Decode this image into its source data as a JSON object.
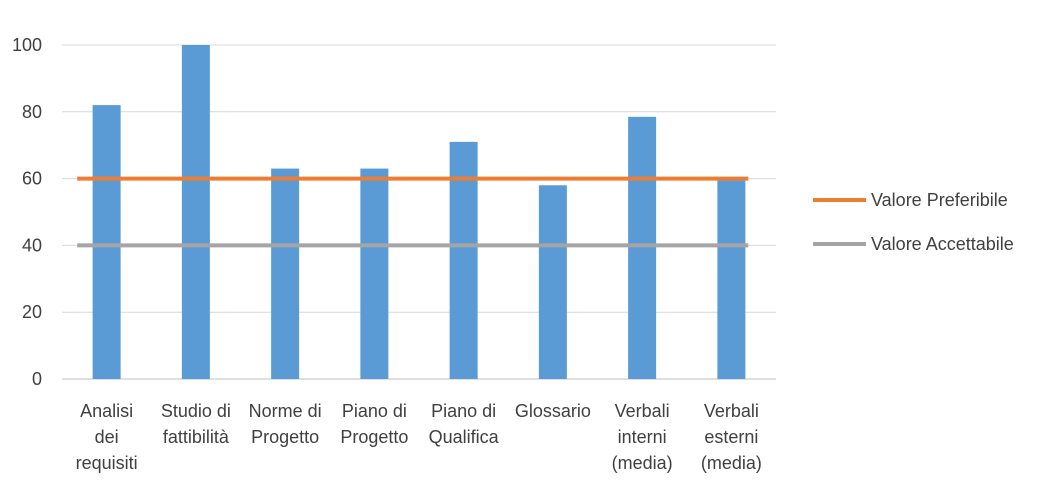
{
  "chart_data": {
    "type": "bar",
    "title": "",
    "xlabel": "",
    "ylabel": "",
    "ylim": [
      0,
      100
    ],
    "yticks": [
      0,
      20,
      40,
      60,
      80,
      100
    ],
    "grid": true,
    "legend_position": "right",
    "categories": [
      [
        "Analisi",
        "dei",
        "requisiti"
      ],
      [
        "Studio di",
        "fattibilità"
      ],
      [
        "Norme di",
        "Progetto"
      ],
      [
        "Piano di",
        "Progetto"
      ],
      [
        "Piano di",
        "Qualifica"
      ],
      [
        "Glossario"
      ],
      [
        "Verbali",
        "interni",
        "(media)"
      ],
      [
        "Verbali",
        "esterni",
        "(media)"
      ]
    ],
    "series": [
      {
        "kind": "bar",
        "values": [
          82,
          100,
          63,
          63,
          71,
          58,
          78.5,
          60.5
        ],
        "color": "#5b9bd5"
      },
      {
        "name": "Valore Preferibile",
        "kind": "line",
        "values": [
          60,
          60,
          60,
          60,
          60,
          60,
          60,
          60
        ],
        "color": "#ed7d31"
      },
      {
        "name": "Valore Accettabile",
        "kind": "line",
        "values": [
          40,
          40,
          40,
          40,
          40,
          40,
          40,
          40
        ],
        "color": "#a5a5a5"
      }
    ]
  }
}
